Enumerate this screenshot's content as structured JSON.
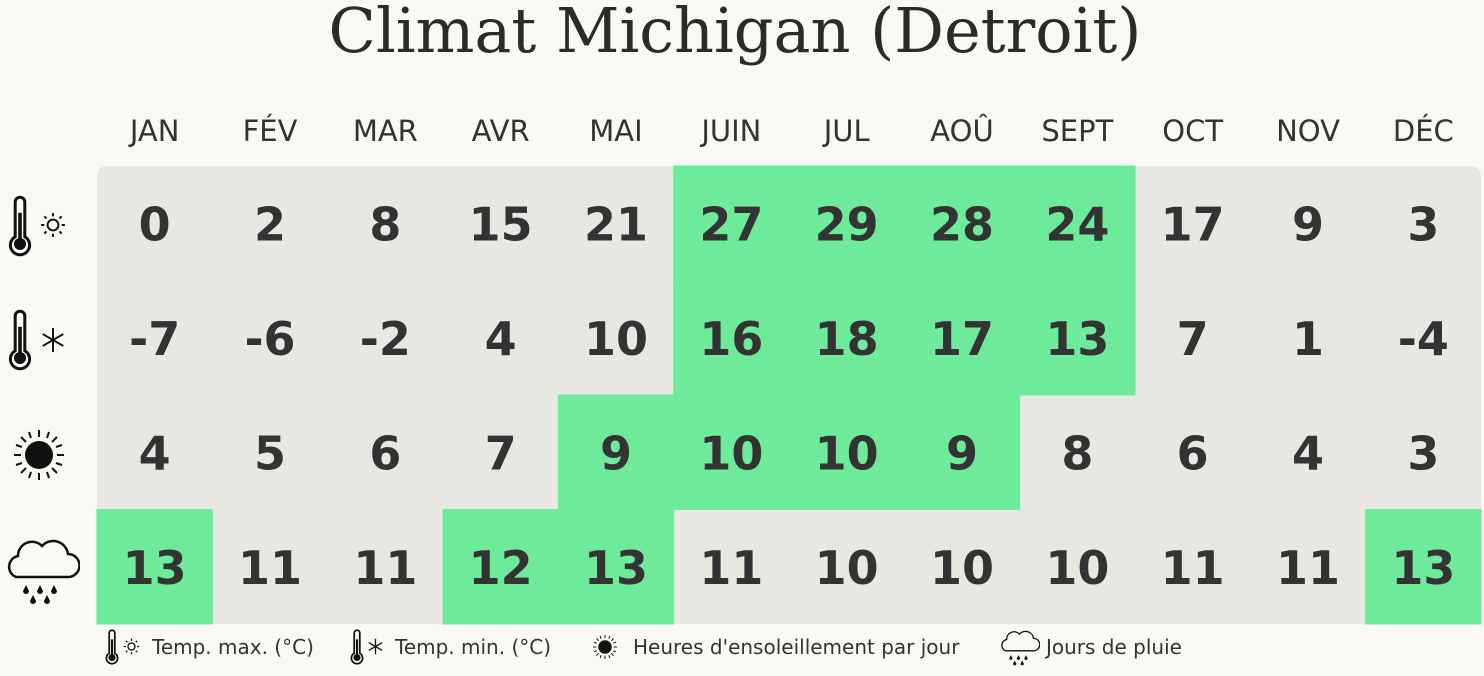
{
  "header": {
    "title": "Climat Michigan (Detroit)"
  },
  "table": {
    "months": [
      "JAN",
      "FÉV",
      "MAR",
      "AVR",
      "MAI",
      "JUIN",
      "JUL",
      "AOÛ",
      "SEPT",
      "OCT",
      "NOV",
      "DÉC"
    ],
    "base_color": "#e9e7e1",
    "highlight_color": "#6dea9a",
    "rows": [
      {
        "values": [
          0,
          2,
          8,
          15,
          21,
          27,
          29,
          28,
          24,
          17,
          9,
          3
        ],
        "highlighted": [
          false,
          false,
          false,
          false,
          false,
          true,
          true,
          true,
          true,
          false,
          false,
          false
        ]
      },
      {
        "values": [
          -7,
          -6,
          -2,
          4,
          10,
          16,
          18,
          17,
          13,
          7,
          1,
          -4
        ],
        "highlighted": [
          false,
          false,
          false,
          false,
          false,
          true,
          true,
          true,
          true,
          false,
          false,
          false
        ]
      },
      {
        "values": [
          4,
          5,
          6,
          7,
          9,
          10,
          10,
          9,
          8,
          6,
          4,
          3
        ],
        "highlighted": [
          false,
          false,
          false,
          false,
          true,
          true,
          true,
          true,
          false,
          false,
          false,
          false
        ]
      },
      {
        "values": [
          13,
          11,
          11,
          12,
          13,
          11,
          10,
          10,
          10,
          11,
          11,
          13
        ],
        "highlighted": [
          true,
          false,
          false,
          true,
          true,
          false,
          false,
          false,
          false,
          false,
          false,
          true
        ]
      }
    ]
  },
  "legend": [
    "Temp. max. (°C)",
    "Temp. min. (°C)",
    "Heures d'ensoleillement par jour",
    "Jours de pluie"
  ]
}
